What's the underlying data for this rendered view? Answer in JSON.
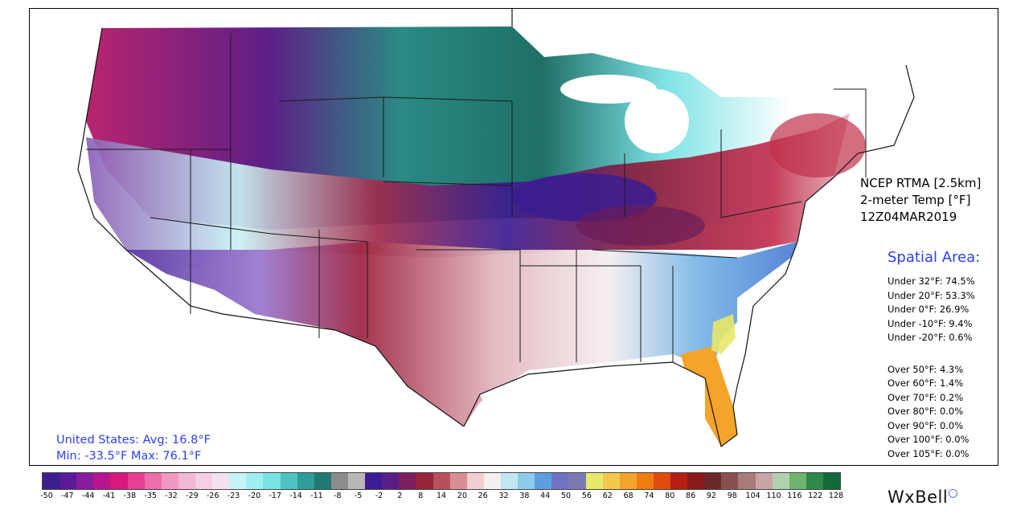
{
  "product": {
    "line1": "NCEP RTMA [2.5km]",
    "line2": "2-meter Temp [°F]",
    "line3": "12Z04MAR2019"
  },
  "spatial": {
    "title": "Spatial Area:",
    "under": [
      "Under 32°F: 74.5%",
      "Under 20°F: 53.3%",
      "Under 0°F: 26.9%",
      "Under -10°F: 9.4%",
      "Under -20°F: 0.6%"
    ],
    "over": [
      "Over 50°F: 4.3%",
      "Over 60°F: 1.4%",
      "Over 70°F: 0.2%",
      "Over 80°F: 0.0%",
      "Over 90°F: 0.0%",
      "Over 100°F: 0.0%",
      "Over 105°F: 0.0%"
    ]
  },
  "summary": {
    "avg_line": "United States: Avg:  16.8°F",
    "minmax_line": "Min: -33.5°F Max:  76.1°F"
  },
  "colorbar": {
    "ticks": [
      "-50",
      "-47",
      "-44",
      "-41",
      "-38",
      "-35",
      "-32",
      "-29",
      "-26",
      "-23",
      "-20",
      "-17",
      "-14",
      "-11",
      "-8",
      "-5",
      "-2",
      "2",
      "8",
      "14",
      "20",
      "26",
      "32",
      "38",
      "44",
      "50",
      "56",
      "62",
      "68",
      "74",
      "80",
      "86",
      "92",
      "98",
      "104",
      "110",
      "116",
      "122",
      "128"
    ],
    "colors": [
      "#3a1f8f",
      "#5a1a9a",
      "#8a1a9e",
      "#b8168f",
      "#d9177f",
      "#e63f93",
      "#ec6eaa",
      "#f098c2",
      "#f3b7d6",
      "#f4cfe6",
      "#f4e2f0",
      "#c7f3f7",
      "#9eeff2",
      "#79e3e6",
      "#4cc2c3",
      "#2d9c9a",
      "#1f7a72",
      "#8c8c8c",
      "#b8b8b8",
      "#3b1c92",
      "#5a1f86",
      "#7c1f5f",
      "#98243a",
      "#b8505c",
      "#d88e93",
      "#f3cfd2",
      "#f4f0f2",
      "#bfe8f3",
      "#8ccbec",
      "#5e9ede",
      "#7272c4",
      "#7a7ab4",
      "#e8e86a",
      "#f3c94a",
      "#f4a32b",
      "#f27c12",
      "#e14b0e",
      "#b41f12",
      "#8a1a1a",
      "#6b2a2a",
      "#8a5050",
      "#a87a7a",
      "#c8a5a5",
      "#b0d0b0",
      "#6fb36f",
      "#2f8a4a",
      "#106a3a"
    ]
  },
  "brand": {
    "name": "WxBell",
    "accent": "#2b3ff0"
  }
}
